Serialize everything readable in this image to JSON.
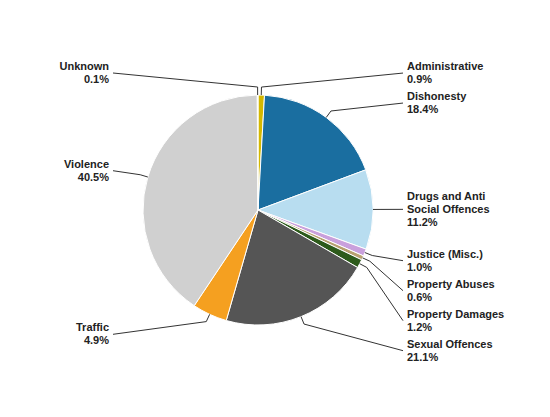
{
  "chart_data": {
    "type": "pie",
    "categories": [
      "Administrative",
      "Dishonesty",
      "Drugs and Anti\nSocial Offences",
      "Justice (Misc.)",
      "Property Abuses",
      "Property Damages",
      "Sexual Offences",
      "Traffic",
      "Violence",
      "Unknown"
    ],
    "values": [
      0.9,
      18.4,
      11.2,
      1.0,
      0.6,
      1.2,
      21.1,
      4.9,
      40.5,
      0.1
    ],
    "value_labels": [
      "0.9%",
      "18.4%",
      "11.2%",
      "1.0%",
      "0.6%",
      "1.2%",
      "21.1%",
      "4.9%",
      "40.5%",
      "0.1%"
    ],
    "colors": [
      "#d4b800",
      "#1a6ea0",
      "#b8ddf0",
      "#c9a0dc",
      "#b8a070",
      "#2d5a1b",
      "#555555",
      "#f5a020",
      "#d0d0d0",
      "#f0f0c8"
    ],
    "data_labels": true
  }
}
